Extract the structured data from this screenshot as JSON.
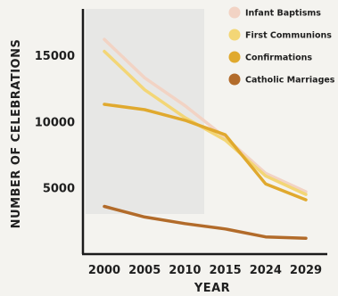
{
  "chart_data": {
    "type": "line",
    "xlabel": "YEAR",
    "ylabel": "NUMBER OF CELEBRATIONS",
    "x": [
      "2000",
      "2005",
      "2010",
      "2015",
      "2024",
      "2029"
    ],
    "yticks": [
      5000,
      10000,
      15000
    ],
    "ylim": [
      0,
      18500
    ],
    "legend_position": "top-right",
    "grid": false,
    "series": [
      {
        "name": "Infant Baptisms",
        "color": "#f2d3c4",
        "values": [
          16200,
          13300,
          11200,
          8800,
          6100,
          4700
        ]
      },
      {
        "name": "First Communions",
        "color": "#f3d676",
        "values": [
          15300,
          12400,
          10300,
          8600,
          5900,
          4500
        ]
      },
      {
        "name": "Confirmations",
        "color": "#e0a92e",
        "values": [
          11300,
          10900,
          10100,
          9000,
          5300,
          4100
        ]
      },
      {
        "name": "Catholic Marriages",
        "color": "#b26b2a",
        "values": [
          3600,
          2800,
          2300,
          1900,
          1300,
          1200
        ]
      }
    ]
  }
}
